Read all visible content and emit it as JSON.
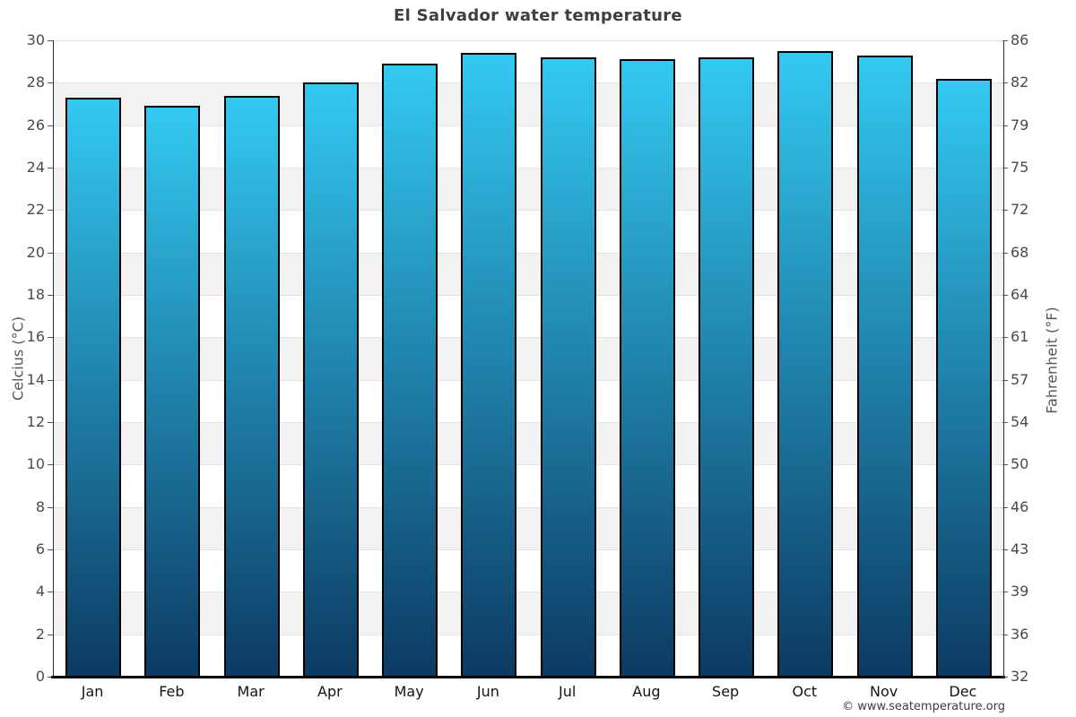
{
  "chart_data": {
    "type": "bar",
    "title": "El Salvador water temperature",
    "categories": [
      "Jan",
      "Feb",
      "Mar",
      "Apr",
      "May",
      "Jun",
      "Jul",
      "Aug",
      "Sep",
      "Oct",
      "Nov",
      "Dec"
    ],
    "values": [
      27.3,
      26.9,
      27.4,
      28.0,
      28.9,
      29.4,
      29.2,
      29.1,
      29.2,
      29.5,
      29.3,
      28.2
    ],
    "unit": "°C",
    "ylabel_left": "Celcius (°C)",
    "ylabel_right": "Fahrenheit (°F)",
    "ylim": [
      0,
      30
    ],
    "left_ticks": [
      0,
      2,
      4,
      6,
      8,
      10,
      12,
      14,
      16,
      18,
      20,
      22,
      24,
      26,
      28,
      30
    ],
    "right_tick_labels": [
      "32",
      "36",
      "39",
      "43",
      "46",
      "50",
      "54",
      "57",
      "61",
      "64",
      "68",
      "72",
      "75",
      "79",
      "82",
      "86"
    ],
    "grid": true,
    "legend": "none",
    "band_color": "#f2f2f2",
    "grid_color": "#e2e2e2",
    "bar_gradient_top": "#33c9f2",
    "bar_gradient_bottom": "#0c3a62",
    "bar_border_color": "#000000",
    "copyright": "© www.seatemperature.org"
  }
}
